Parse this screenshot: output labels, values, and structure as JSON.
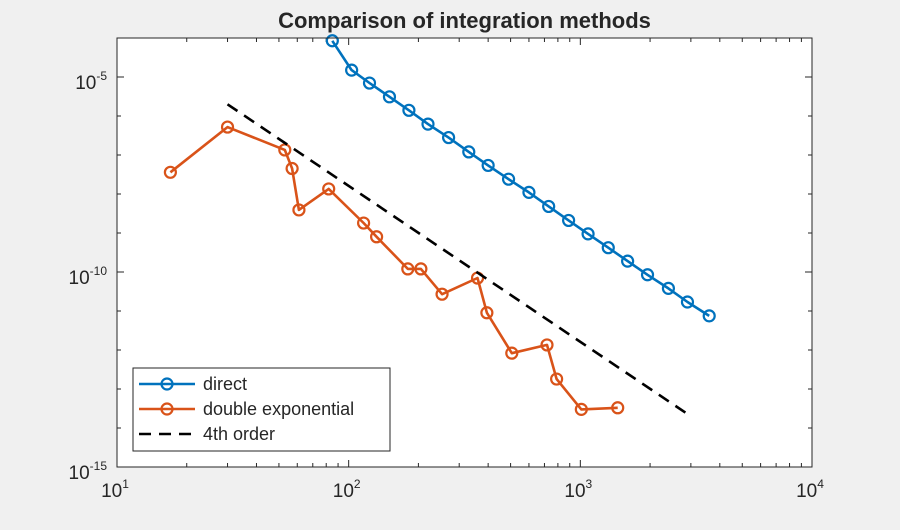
{
  "chart_data": {
    "type": "line",
    "title": "Comparison of integration methods",
    "xlabel": "",
    "ylabel": "",
    "xscale": "log",
    "yscale": "log",
    "xlim": [
      10,
      10000
    ],
    "ylim": [
      1e-15,
      0.0001
    ],
    "grid": false,
    "legend_position": "bottom-left",
    "x_ticks": [
      {
        "base": "10",
        "exp": "1",
        "value": 10
      },
      {
        "base": "10",
        "exp": "2",
        "value": 100
      },
      {
        "base": "10",
        "exp": "3",
        "value": 1000
      },
      {
        "base": "10",
        "exp": "4",
        "value": 10000
      }
    ],
    "y_ticks": [
      {
        "base": "10",
        "exp": "-5",
        "value": 1e-05
      },
      {
        "base": "10",
        "exp": "-10",
        "value": 1e-10
      },
      {
        "base": "10",
        "exp": "-15",
        "value": 1e-15
      }
    ],
    "series": [
      {
        "name": "direct",
        "color": "#0072bd",
        "style": "solid",
        "marker": "circle",
        "x": [
          85,
          103,
          123,
          150,
          182,
          220,
          270,
          330,
          400,
          490,
          600,
          730,
          890,
          1080,
          1320,
          1600,
          1950,
          2400,
          2900,
          3600
        ],
        "y": [
          8.5e-05,
          1.5e-05,
          7e-06,
          3.1e-06,
          1.4e-06,
          6.2e-07,
          2.8e-07,
          1.2e-07,
          5.4e-08,
          2.4e-08,
          1.1e-08,
          4.8e-09,
          2.1e-09,
          9.5e-10,
          4.2e-10,
          1.9e-10,
          8.5e-11,
          3.8e-11,
          1.7e-11,
          7.5e-12
        ]
      },
      {
        "name": "double exponential",
        "color": "#d95319",
        "style": "solid",
        "marker": "circle",
        "x": [
          17,
          30,
          53,
          57,
          61,
          82,
          116,
          132,
          180,
          205,
          253,
          360,
          395,
          506,
          718,
          790,
          1010,
          1450
        ],
        "y": [
          3.6e-08,
          5.2e-07,
          1.35e-07,
          4.5e-08,
          3.9e-09,
          1.35e-08,
          1.8e-09,
          8e-10,
          1.2e-10,
          1.2e-10,
          2.7e-11,
          7e-11,
          9e-12,
          8.3e-13,
          1.35e-12,
          1.8e-13,
          3e-14,
          3.3e-14
        ]
      },
      {
        "name": "4th order",
        "color": "#000000",
        "style": "dashed",
        "marker": "none",
        "x": [
          30,
          3000
        ],
        "y": [
          2e-06,
          2e-14
        ]
      }
    ]
  }
}
